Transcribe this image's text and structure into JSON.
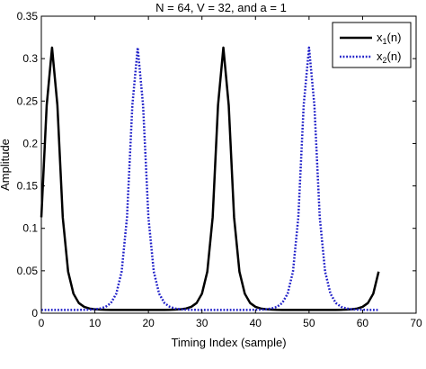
{
  "chart_data": {
    "type": "line",
    "title": "N = 64, V = 32, and a = 1",
    "xlabel": "Timing Index (sample)",
    "ylabel": "Amplitude",
    "xlim": [
      0,
      70
    ],
    "ylim": [
      0,
      0.35
    ],
    "xticks": [
      0,
      10,
      20,
      30,
      40,
      50,
      60,
      70
    ],
    "yticks": [
      0,
      0.05,
      0.1,
      0.15,
      0.2,
      0.25,
      0.3,
      0.35
    ],
    "xtick_labels": [
      "0",
      "10",
      "20",
      "30",
      "40",
      "50",
      "60",
      "70"
    ],
    "ytick_labels": [
      "0",
      "0.05",
      "0.1",
      "0.15",
      "0.2",
      "0.25",
      "0.3",
      "0.35"
    ],
    "grid": false,
    "legend_position": "top-right",
    "x": [
      0,
      1,
      2,
      3,
      4,
      5,
      6,
      7,
      8,
      9,
      10,
      11,
      12,
      13,
      14,
      15,
      16,
      17,
      18,
      19,
      20,
      21,
      22,
      23,
      24,
      25,
      26,
      27,
      28,
      29,
      30,
      31,
      32,
      33,
      34,
      35,
      36,
      37,
      38,
      39,
      40,
      41,
      42,
      43,
      44,
      45,
      46,
      47,
      48,
      49,
      50,
      51,
      52,
      53,
      54,
      55,
      56,
      57,
      58,
      59,
      60,
      61,
      62,
      63
    ],
    "series": [
      {
        "name": "x",
        "name_subscript": "1",
        "name_suffix": "(n)",
        "color": "#000000",
        "style": "solid",
        "values": [
          0.113,
          0.245,
          0.313,
          0.245,
          0.113,
          0.049,
          0.023,
          0.012,
          0.0075,
          0.0055,
          0.0046,
          0.0042,
          0.004,
          0.0039,
          0.0039,
          0.0039,
          0.0039,
          0.0039,
          0.0039,
          0.0039,
          0.0039,
          0.0039,
          0.0039,
          0.0039,
          0.004,
          0.0042,
          0.0046,
          0.0055,
          0.0075,
          0.012,
          0.023,
          0.049,
          0.113,
          0.245,
          0.313,
          0.245,
          0.113,
          0.049,
          0.023,
          0.012,
          0.0075,
          0.0055,
          0.0046,
          0.0042,
          0.004,
          0.0039,
          0.0039,
          0.0039,
          0.0039,
          0.0039,
          0.0039,
          0.0039,
          0.0039,
          0.0039,
          0.0039,
          0.0039,
          0.004,
          0.0042,
          0.0046,
          0.0055,
          0.0075,
          0.012,
          0.023,
          0.049
        ]
      },
      {
        "name": "x",
        "name_subscript": "2",
        "name_suffix": "(n)",
        "color": "#1f1fc8",
        "style": "dotted",
        "values": [
          0.0039,
          0.0039,
          0.0039,
          0.0039,
          0.0039,
          0.0039,
          0.0039,
          0.0039,
          0.004,
          0.0042,
          0.0046,
          0.0055,
          0.0075,
          0.012,
          0.023,
          0.049,
          0.113,
          0.245,
          0.313,
          0.245,
          0.113,
          0.049,
          0.023,
          0.012,
          0.0075,
          0.0055,
          0.0046,
          0.0042,
          0.004,
          0.0039,
          0.0039,
          0.0039,
          0.0039,
          0.0039,
          0.0039,
          0.0039,
          0.0039,
          0.0039,
          0.0039,
          0.0039,
          0.004,
          0.0042,
          0.0046,
          0.0055,
          0.0075,
          0.012,
          0.023,
          0.049,
          0.113,
          0.245,
          0.313,
          0.245,
          0.113,
          0.049,
          0.023,
          0.012,
          0.0075,
          0.0055,
          0.0046,
          0.0042,
          0.004,
          0.0039,
          0.0039,
          0.0039
        ]
      }
    ]
  }
}
